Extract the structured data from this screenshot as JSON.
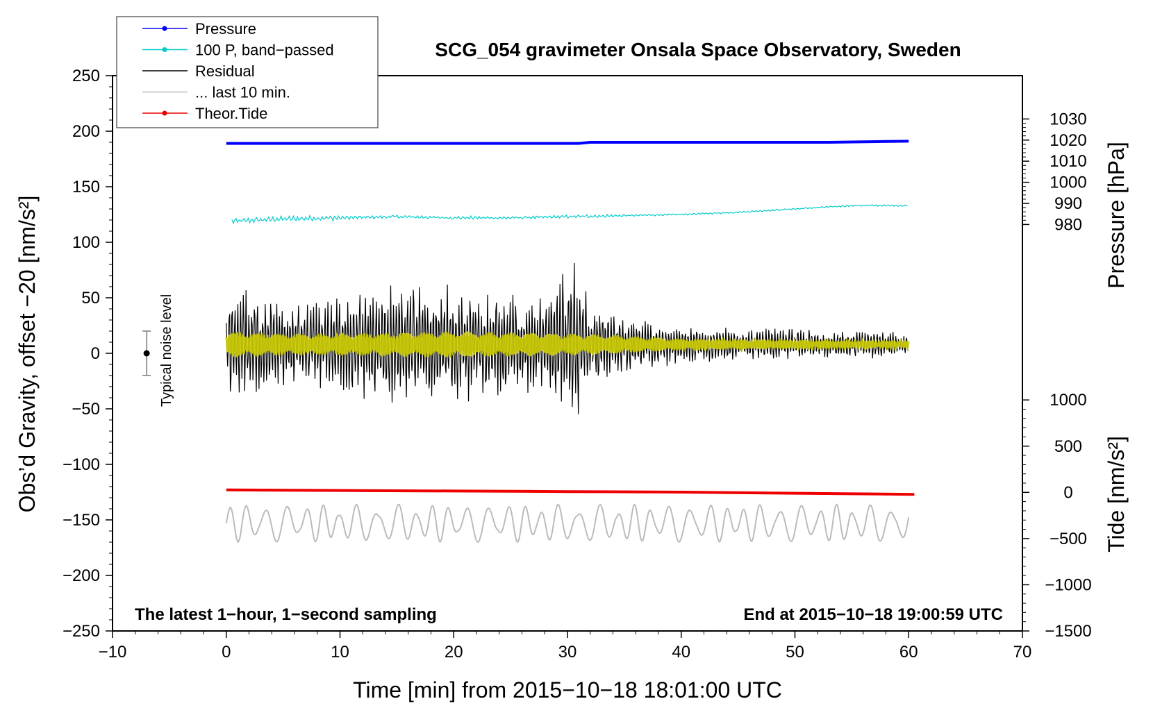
{
  "chart_data": {
    "type": "line",
    "title": "SCG_054 gravimeter Onsala Space Observatory, Sweden",
    "xlabel": "Time [min] from 2015−10−18 18:01:00 UTC",
    "ylabel_left": "Obs’d Gravity, offset −20 [nm/s²]",
    "ylabel_right_top": "Pressure [hPa]",
    "ylabel_right_bottom": "Tide [nm/s²]",
    "xlim": [
      -10,
      70
    ],
    "ylim_left": [
      -250,
      250
    ],
    "x_ticks": [
      -10,
      0,
      10,
      20,
      30,
      40,
      50,
      60,
      70
    ],
    "x_tick_labels": [
      "−10",
      "0",
      "10",
      "20",
      "30",
      "40",
      "50",
      "60",
      "70"
    ],
    "y_left_ticks": [
      250,
      200,
      150,
      100,
      50,
      0,
      -50,
      -100,
      -150,
      -200,
      -250
    ],
    "y_left_tick_labels": [
      "250",
      "200",
      "150",
      "100",
      "50",
      "0",
      "−50",
      "−100",
      "−150",
      "−200",
      "−250"
    ],
    "pressure_axis": {
      "ticks": [
        1030,
        1020,
        1010,
        1000,
        990,
        980
      ],
      "tick_labels": [
        "1030",
        "1020",
        "1010",
        "1000",
        "990",
        "980"
      ],
      "map_left": {
        "v1": 1020,
        "y1": 192,
        "v2": 980,
        "y2": 116
      }
    },
    "tide_axis": {
      "ticks": [
        1000,
        500,
        0,
        -500,
        -1000,
        -1500
      ],
      "tick_labels": [
        "1000",
        "500",
        "0",
        "−500",
        "−1000",
        "−1500"
      ],
      "map_left": {
        "v1": 1000,
        "y1": -42,
        "v2": -1500,
        "y2": -250
      }
    },
    "legend": [
      {
        "label": "Pressure",
        "color": "#0000ff",
        "marker": true
      },
      {
        "label": "100 P, band−passed",
        "color": "#00cccc",
        "marker": true
      },
      {
        "label": "Residual",
        "color": "#000000",
        "marker": false
      },
      {
        "label": "... last 10 min.",
        "color": "#bbbbbb",
        "marker": false
      },
      {
        "label": "Theor.Tide",
        "color": "#ee0000",
        "marker": true
      }
    ],
    "annotations": {
      "bottom_left": "The latest 1−hour, 1−second sampling",
      "bottom_right": "End at 2015−10−18 19:00:59 UTC",
      "noise_label": "Typical noise level"
    },
    "noise_bar": {
      "x": -7,
      "center": 0,
      "low": -20,
      "high": 20
    },
    "series": [
      {
        "name": "Pressure",
        "color": "#0000ff",
        "x": [
          0,
          31,
          32,
          53,
          60
        ],
        "y": [
          189,
          189,
          190,
          190,
          191
        ]
      },
      {
        "name": "100 P, band−passed",
        "color": "#00cccc",
        "x": [
          0.5,
          5,
          10,
          15,
          20,
          25,
          30,
          35,
          40,
          45,
          50,
          55,
          60
        ],
        "y": [
          119,
          121,
          122,
          123,
          122,
          122,
          123,
          124,
          125,
          127,
          130,
          133,
          133
        ]
      },
      {
        "name": "Residual",
        "color": "#000000",
        "x_range": [
          0,
          60
        ],
        "envelope_x": [
          0,
          3,
          7,
          10,
          15,
          20,
          25,
          28,
          30.5,
          32,
          36,
          40,
          45,
          50,
          55,
          60
        ],
        "envelope_y": [
          55,
          45,
          40,
          50,
          60,
          55,
          50,
          45,
          88,
          40,
          25,
          18,
          15,
          14,
          13,
          12
        ],
        "center": 8
      },
      {
        "name": "Residual filtered",
        "color": "#cccc00",
        "x_range": [
          0,
          60
        ],
        "envelope_x": [
          0,
          5,
          10,
          20,
          30,
          35,
          40,
          50,
          60
        ],
        "envelope_y": [
          12,
          10,
          10,
          12,
          10,
          8,
          5,
          4,
          3
        ],
        "center": 8
      },
      {
        "name": "... last 10 min.",
        "color": "#bbbbbb",
        "x_range": [
          0,
          60
        ],
        "center": -153,
        "amplitude": 17
      },
      {
        "name": "Theor.Tide",
        "color": "#ee0000",
        "x": [
          0,
          10,
          20,
          30,
          40,
          50,
          60.5
        ],
        "y": [
          -123,
          -123.5,
          -124,
          -124.5,
          -125,
          -126,
          -127
        ]
      }
    ]
  }
}
